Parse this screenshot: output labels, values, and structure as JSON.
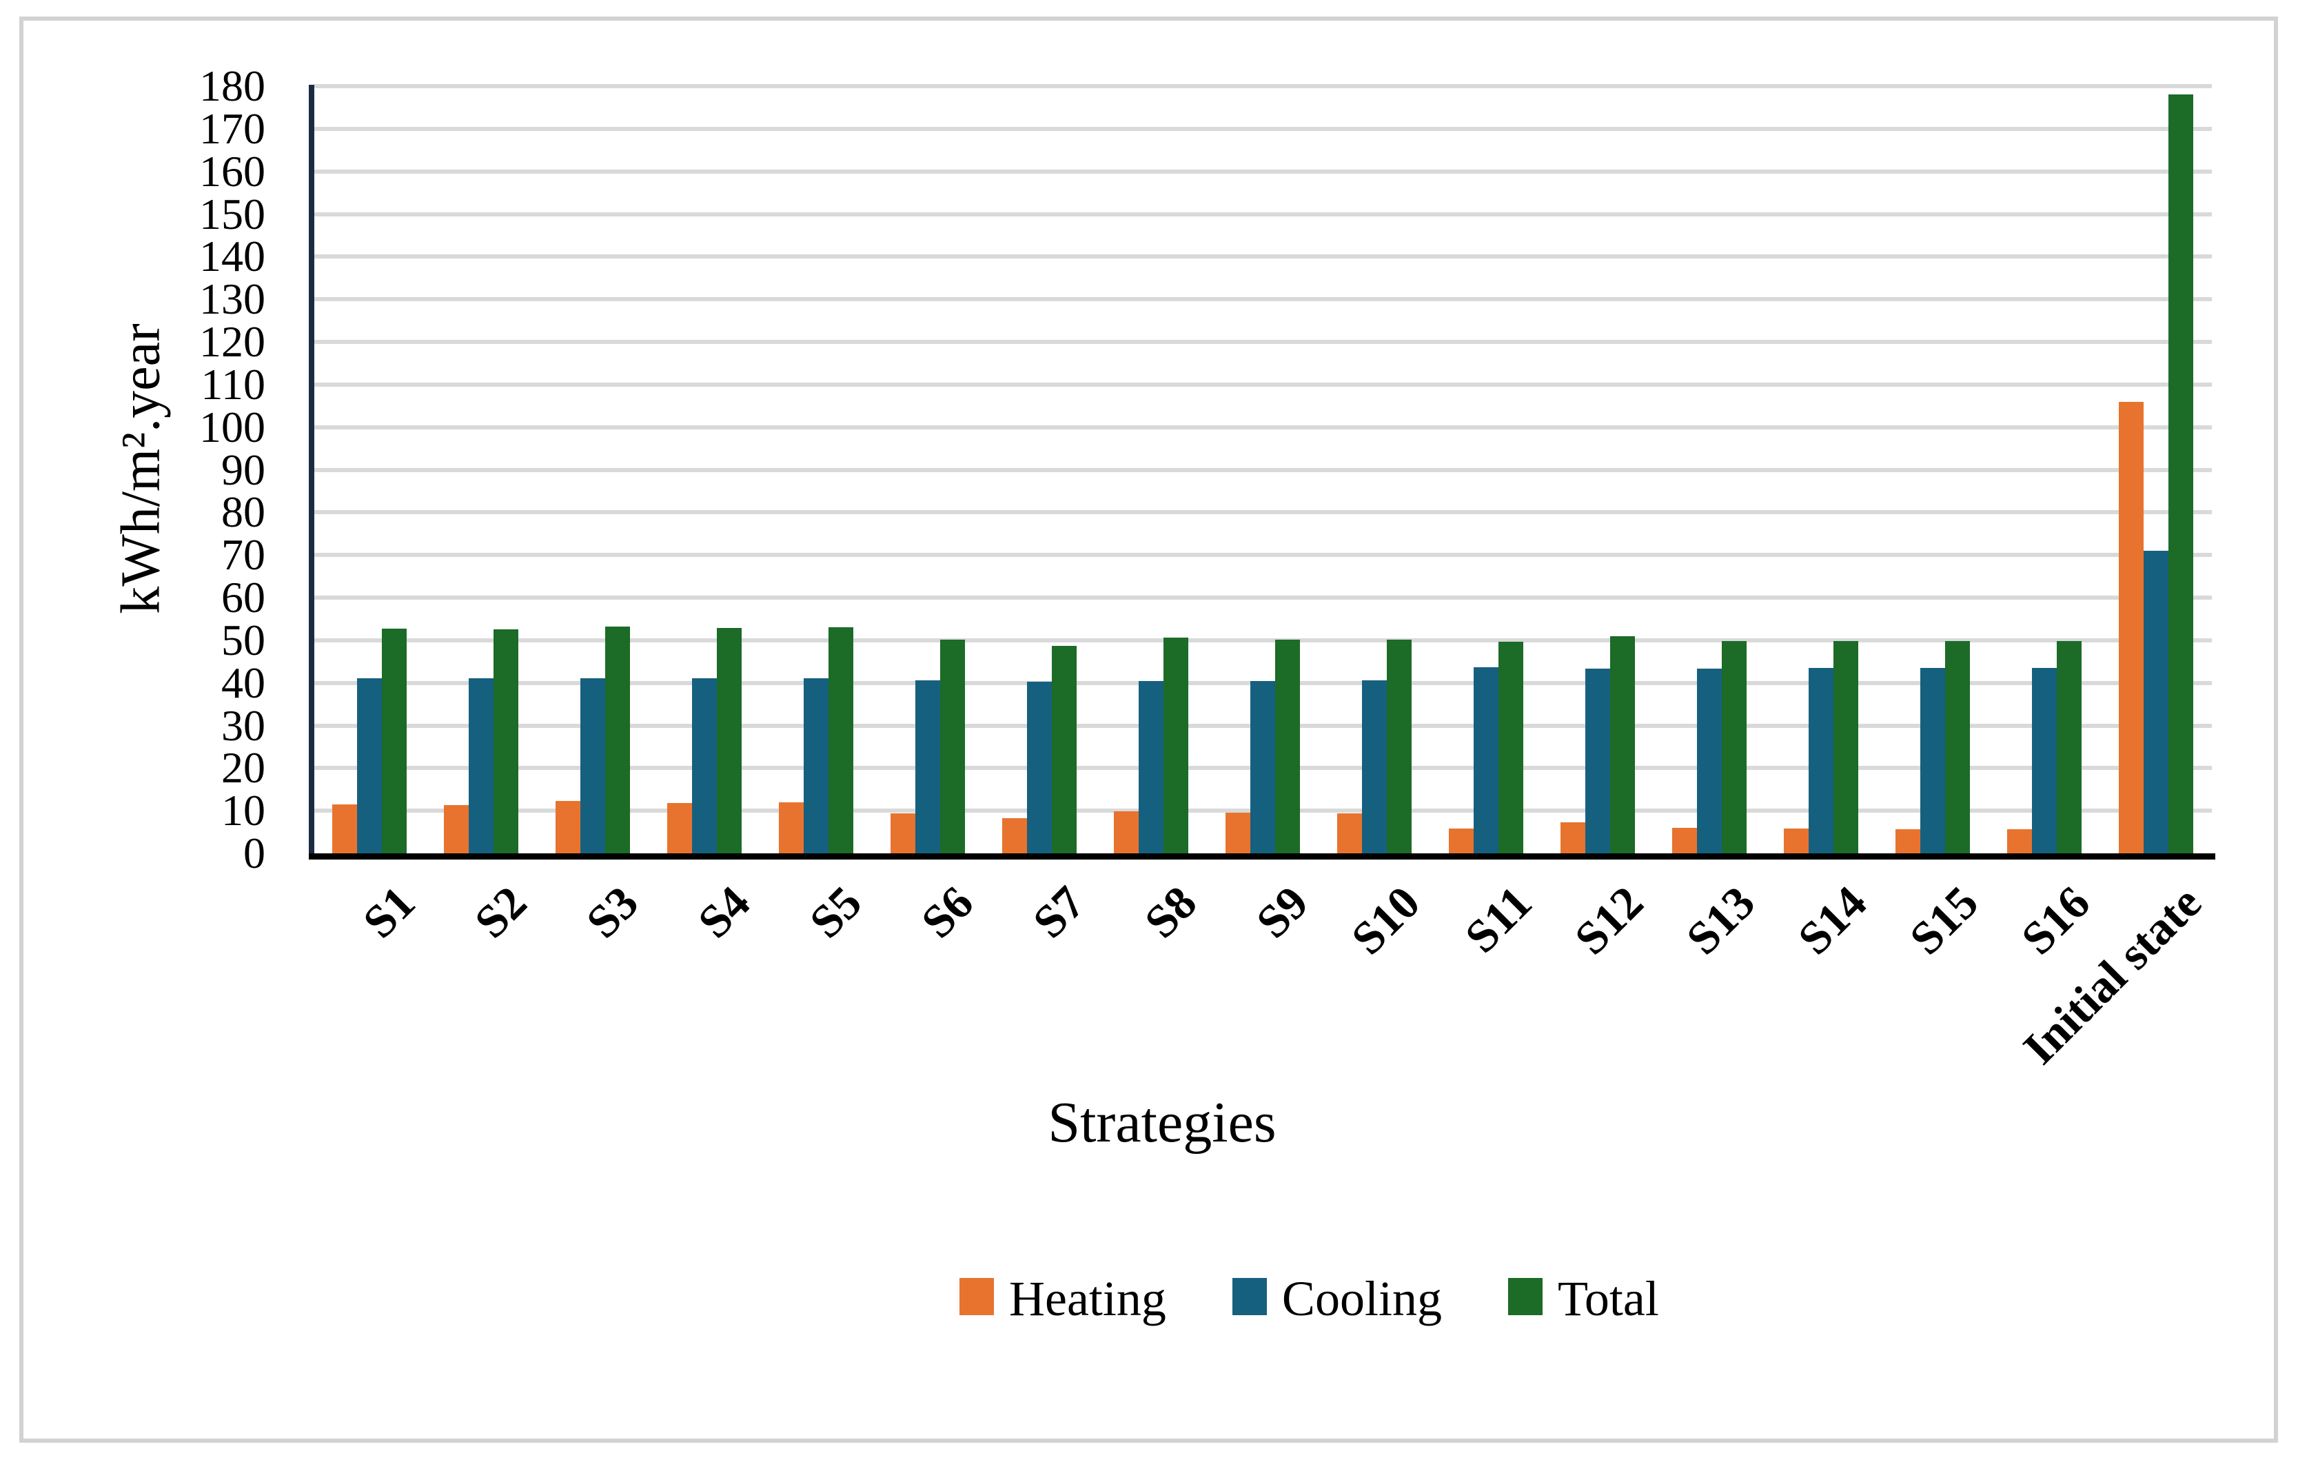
{
  "chart_data": {
    "type": "bar",
    "title": "",
    "xlabel": "Strategies",
    "ylabel": "kWh/m².year",
    "ylim": [
      0,
      180
    ],
    "ytick_step": 10,
    "grid": true,
    "grid_color": "#d9d9d9",
    "legend_position": "bottom",
    "axis_colors": {
      "y_spine": "#1b2b42",
      "x_spine": "#000000"
    },
    "categories": [
      "S1",
      "S2",
      "S3",
      "S4",
      "S5",
      "S6",
      "S7",
      "S8",
      "S9",
      "S10",
      "S11",
      "S12",
      "S13",
      "S14",
      "S15",
      "S16",
      "Initial state"
    ],
    "series": [
      {
        "name": "Heating",
        "color": "#e8732e",
        "values": [
          11.5,
          11.4,
          12.3,
          11.8,
          12.0,
          9.4,
          8.3,
          9.8,
          9.5,
          9.4,
          5.9,
          7.2,
          6.0,
          5.8,
          5.7,
          5.7,
          106.0
        ]
      },
      {
        "name": "Cooling",
        "color": "#16607f",
        "values": [
          41.0,
          41.0,
          41.0,
          41.0,
          41.0,
          40.6,
          40.2,
          40.5,
          40.5,
          40.6,
          43.6,
          43.4,
          43.3,
          43.5,
          43.5,
          43.5,
          71.0
        ]
      },
      {
        "name": "Total",
        "color": "#1c6b27",
        "values": [
          52.8,
          52.6,
          53.2,
          52.9,
          53.0,
          50.2,
          48.7,
          50.6,
          50.2,
          50.2,
          49.7,
          50.9,
          49.8,
          49.8,
          49.8,
          49.8,
          178.0
        ]
      }
    ]
  }
}
